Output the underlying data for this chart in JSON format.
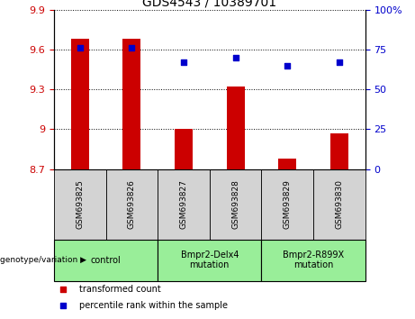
{
  "title": "GDS4543 / 10389701",
  "samples": [
    "GSM693825",
    "GSM693826",
    "GSM693827",
    "GSM693828",
    "GSM693829",
    "GSM693830"
  ],
  "bar_values": [
    9.68,
    9.68,
    9.0,
    9.32,
    8.78,
    8.97
  ],
  "percentile_values": [
    76,
    76,
    67,
    70,
    65,
    67
  ],
  "y_min": 8.7,
  "y_max": 9.9,
  "y_ticks": [
    8.7,
    9.0,
    9.3,
    9.6,
    9.9
  ],
  "y_tick_labels": [
    "8.7",
    "9",
    "9.3",
    "9.6",
    "9.9"
  ],
  "right_y_ticks": [
    0,
    25,
    50,
    75,
    100
  ],
  "right_y_tick_labels": [
    "0",
    "25",
    "50",
    "75",
    "100%"
  ],
  "bar_color": "#cc0000",
  "dot_color": "#0000cc",
  "bar_bottom": 8.7,
  "bar_width": 0.35,
  "groups": [
    {
      "label": "control",
      "indices": [
        0,
        1
      ]
    },
    {
      "label": "Bmpr2-Delx4\nmutation",
      "indices": [
        2,
        3
      ]
    },
    {
      "label": "Bmpr2-R899X\nmutation",
      "indices": [
        4,
        5
      ]
    }
  ],
  "group_bg_color": "#99ee99",
  "sample_bg_color": "#d3d3d3",
  "legend_items": [
    {
      "label": "transformed count",
      "color": "#cc0000"
    },
    {
      "label": "percentile rank within the sample",
      "color": "#0000cc"
    }
  ],
  "genotype_label": "genotype/variation",
  "tick_color_left": "#cc0000",
  "tick_color_right": "#0000cc"
}
